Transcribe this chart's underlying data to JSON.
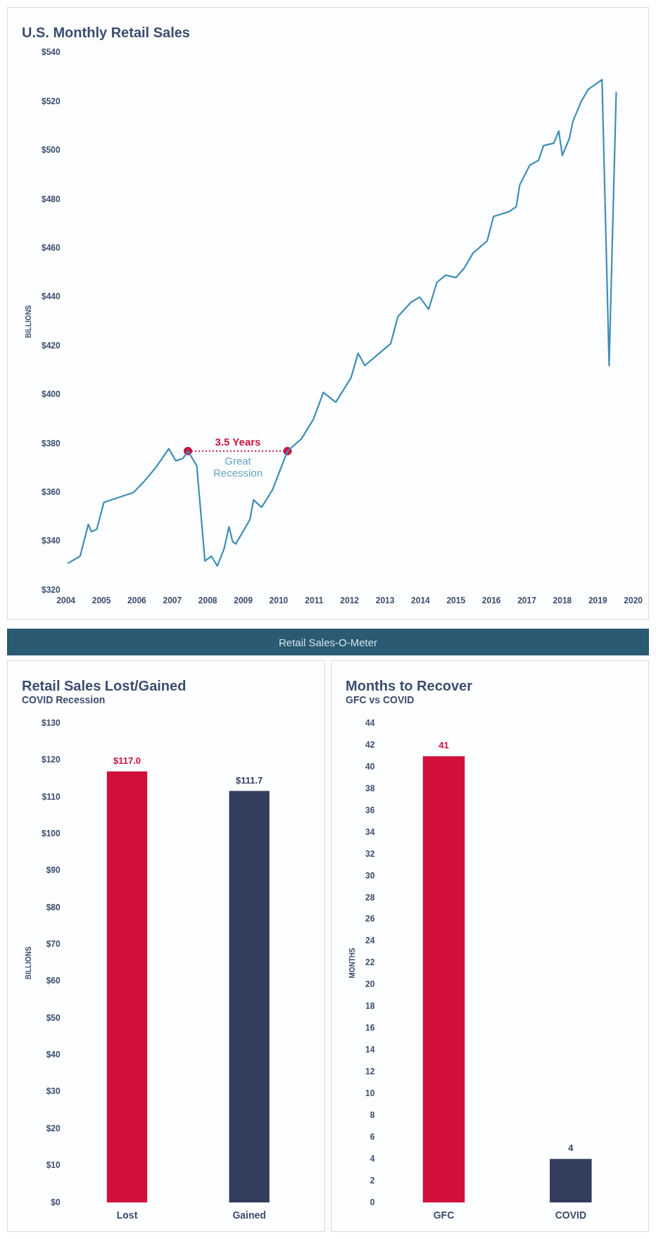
{
  "chart_data": [
    {
      "type": "line",
      "title": "U.S. Monthly Retail Sales",
      "ylabel": "BILLIONS",
      "xlim": [
        2004,
        2020
      ],
      "xticks": [
        2004,
        2005,
        2006,
        2007,
        2008,
        2009,
        2010,
        2011,
        2012,
        2013,
        2014,
        2015,
        2016,
        2017,
        2018,
        2019,
        2020
      ],
      "ylim": [
        320,
        540
      ],
      "yticks": [
        {
          "value": 320,
          "label": "$320"
        },
        {
          "value": 340,
          "label": "$340"
        },
        {
          "value": 360,
          "label": "$360"
        },
        {
          "value": 380,
          "label": "$380"
        },
        {
          "value": 400,
          "label": "$400"
        },
        {
          "value": 420,
          "label": "$420"
        },
        {
          "value": 440,
          "label": "$440"
        },
        {
          "value": 460,
          "label": "$460"
        },
        {
          "value": 480,
          "label": "$480"
        },
        {
          "value": 500,
          "label": "$500"
        },
        {
          "value": 520,
          "label": "$520"
        },
        {
          "value": 540,
          "label": "$540"
        }
      ],
      "grid": false,
      "legend": false,
      "series": [
        {
          "color": "#3f8db5",
          "marker": "none",
          "line_style": "solid",
          "x": [
            2004.05,
            2004.4,
            2004.63,
            2004.72,
            2004.87,
            2005.07,
            2005.27,
            2005.9,
            2006.17,
            2006.52,
            2006.9,
            2007.1,
            2007.3,
            2007.44,
            2007.69,
            2007.82,
            2007.92,
            2008.1,
            2008.27,
            2008.46,
            2008.6,
            2008.7,
            2008.79,
            2009.19,
            2009.29,
            2009.52,
            2009.82,
            2010.25,
            2010.64,
            2010.98,
            2011.26,
            2011.61,
            2012.04,
            2012.24,
            2012.43,
            2013.16,
            2013.36,
            2013.74,
            2013.98,
            2014.23,
            2014.46,
            2014.71,
            2015.0,
            2015.24,
            2015.48,
            2015.88,
            2016.06,
            2016.5,
            2016.7,
            2016.8,
            2017.08,
            2017.33,
            2017.47,
            2017.76,
            2017.9,
            2018.0,
            2018.2,
            2018.3,
            2018.53,
            2018.73,
            2019.12,
            2019.32,
            2019.52
          ],
          "values": [
            331,
            334,
            347,
            344,
            345,
            356,
            357,
            360,
            364,
            370,
            378,
            373,
            374,
            377,
            371,
            349,
            332,
            334,
            330,
            337,
            346,
            340,
            339,
            349,
            357,
            354,
            361,
            377,
            382,
            390,
            401,
            397,
            407,
            417,
            412,
            421,
            432,
            438,
            440,
            435,
            446,
            449,
            448,
            452,
            458,
            463,
            473,
            475,
            477,
            486,
            494,
            496,
            502,
            503,
            508,
            498,
            505,
            512,
            520,
            525,
            529,
            412,
            524
          ]
        },
        {
          "color": "#c8163f",
          "marker": "circle",
          "line_style": "dotted",
          "x": [
            2007.44,
            2010.25
          ],
          "values": [
            377,
            377
          ]
        }
      ],
      "annotations": [
        {
          "text": "3.5 Years",
          "x": 2008.85,
          "y": 377
        },
        "Great Recession"
      ]
    },
    {
      "type": "other",
      "title": "Retail Sales-O-Meter"
    },
    {
      "type": "bar",
      "title": "Retail Sales Lost/Gained",
      "subtitle": "COVID Recession",
      "ylabel": "BILLIONS",
      "categories": [
        "Lost",
        "Gained"
      ],
      "values": [
        117.0,
        111.7
      ],
      "colors": [
        "#d0103a",
        "#333d5e"
      ],
      "value_labels": [
        "$117.0",
        "$111.7"
      ],
      "ylim": [
        0,
        130
      ],
      "yticks": [
        {
          "value": 0,
          "label": "$0"
        },
        {
          "value": 10,
          "label": "$10"
        },
        {
          "value": 20,
          "label": "$20"
        },
        {
          "value": 30,
          "label": "$30"
        },
        {
          "value": 40,
          "label": "$40"
        },
        {
          "value": 50,
          "label": "$50"
        },
        {
          "value": 60,
          "label": "$60"
        },
        {
          "value": 70,
          "label": "$70"
        },
        {
          "value": 80,
          "label": "$80"
        },
        {
          "value": 90,
          "label": "$90"
        },
        {
          "value": 100,
          "label": "$100"
        },
        {
          "value": 110,
          "label": "$110"
        },
        {
          "value": 120,
          "label": "$120"
        },
        {
          "value": 130,
          "label": "$130"
        }
      ],
      "grid": false,
      "legend": false
    },
    {
      "type": "bar",
      "title": "Months to Recover",
      "subtitle": "GFC vs COVID",
      "ylabel": "MONTHS",
      "categories": [
        "GFC",
        "COVID"
      ],
      "values": [
        41,
        4
      ],
      "colors": [
        "#d0103a",
        "#333d5e"
      ],
      "data_labels": true,
      "ylim": [
        0,
        44
      ],
      "yticks": [
        0,
        2,
        4,
        6,
        8,
        10,
        12,
        14,
        16,
        18,
        20,
        22,
        24,
        26,
        28,
        30,
        32,
        34,
        36,
        38,
        40,
        42,
        44
      ],
      "grid": false,
      "legend": false
    }
  ]
}
